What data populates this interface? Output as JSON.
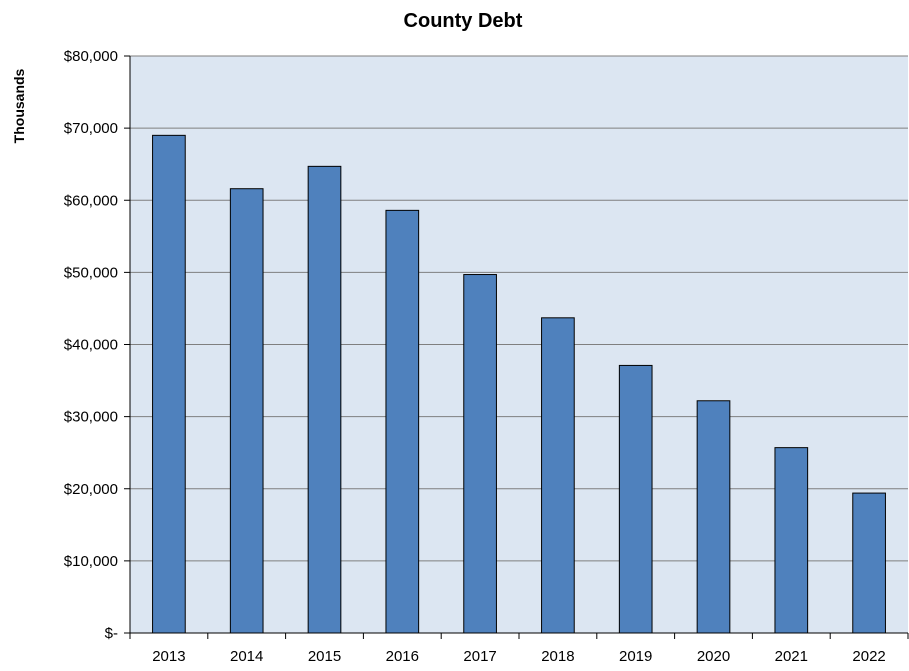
{
  "chart_data": {
    "type": "bar",
    "title": "County Debt",
    "ylabel": "Thousands",
    "xlabel": "",
    "categories": [
      "2013",
      "2014",
      "2015",
      "2016",
      "2017",
      "2018",
      "2019",
      "2020",
      "2021",
      "2022"
    ],
    "values": [
      69000,
      61600,
      64700,
      58600,
      49700,
      43700,
      37100,
      32200,
      25700,
      19400
    ],
    "ylim": [
      0,
      80000
    ],
    "yticks": [
      0,
      10000,
      20000,
      30000,
      40000,
      50000,
      60000,
      70000,
      80000
    ],
    "ytick_labels": [
      "$-",
      "$10,000",
      "$20,000",
      "$30,000",
      "$40,000",
      "$50,000",
      "$60,000",
      "$70,000",
      "$80,000"
    ],
    "grid": true,
    "legend": "none",
    "colors": {
      "bar": "#4F81BD",
      "bar_edge": "#000000",
      "plot_background": "#DCE6F2",
      "grid": "#7F7F7F"
    }
  }
}
